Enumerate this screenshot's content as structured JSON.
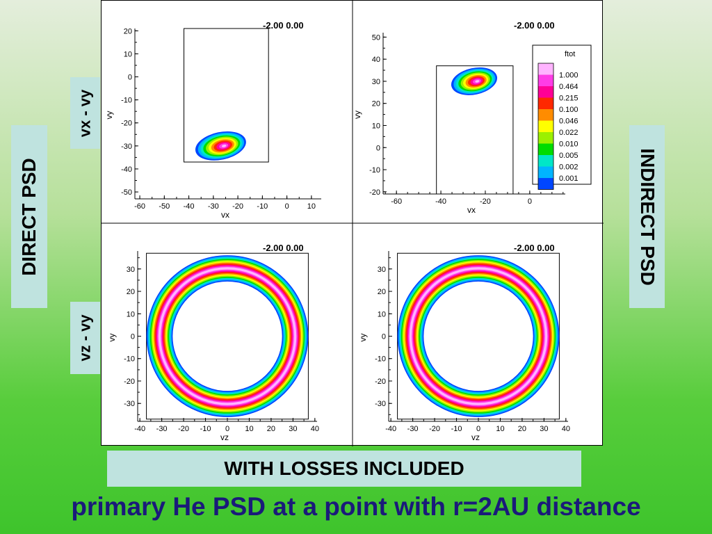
{
  "labels": {
    "direct": "DIRECT PSD",
    "indirect": "INDIRECT PSD",
    "row1": "vx - vy",
    "row2": "vz - vy",
    "banner": "WITH LOSSES INCLUDED",
    "caption": "primary He PSD at a point with r=2AU distance"
  },
  "colors": {
    "caption": "#1a1a7a",
    "label_bg": "#bfe3df",
    "contour_levels": [
      "#0046ff",
      "#00b4ff",
      "#00e6c8",
      "#00dc00",
      "#9cf000",
      "#ffff00",
      "#ff8c00",
      "#ff2800",
      "#ff0096",
      "#ff3ce6",
      "#ffb4ff"
    ]
  },
  "chart_data": [
    {
      "type": "heatmap",
      "name": "direct vx-vy",
      "header": "-2.00   0.00",
      "xlabel": "vx",
      "ylabel": "vy",
      "xticks": [
        -60,
        -50,
        -40,
        -30,
        -20,
        -10,
        0,
        10
      ],
      "yticks": [
        20,
        10,
        0,
        -10,
        -20,
        -30,
        -40,
        -50
      ],
      "xlim": [
        -62,
        14
      ],
      "ylim": [
        -53,
        21
      ],
      "domain_box": {
        "x": [
          -42,
          -7.5
        ],
        "y": [
          -37,
          21
        ]
      },
      "peak": {
        "vx": -27,
        "vy": -30
      }
    },
    {
      "type": "heatmap",
      "name": "indirect vx-vy",
      "header": "-2.00   0.00",
      "xlabel": "vx",
      "ylabel": "vy",
      "xticks": [
        -60,
        -40,
        -20,
        0
      ],
      "yticks": [
        50,
        40,
        30,
        20,
        10,
        0,
        -10,
        -20
      ],
      "xlim": [
        -66,
        16
      ],
      "ylim": [
        -21,
        52
      ],
      "domain_box": {
        "x": [
          -42,
          -7.5
        ],
        "y": [
          -21,
          37
        ]
      },
      "peak": {
        "vx": -25,
        "vy": 30
      }
    },
    {
      "type": "heatmap",
      "name": "direct vz-vy",
      "header": "-2.00   0.00",
      "xlabel": "vz",
      "ylabel": "vy",
      "xticks": [
        -40,
        -30,
        -20,
        -10,
        0,
        10,
        20,
        30,
        40
      ],
      "yticks": [
        30,
        20,
        10,
        0,
        -10,
        -20,
        -30
      ],
      "xlim": [
        -41,
        41
      ],
      "ylim": [
        -38,
        38
      ],
      "ring": {
        "center": [
          0,
          0
        ],
        "inner_radius": 25,
        "outer_radius": 37
      }
    },
    {
      "type": "heatmap",
      "name": "indirect vz-vy",
      "header": "-2.00   0.00",
      "xlabel": "vz",
      "ylabel": "vy",
      "xticks": [
        -40,
        -30,
        -20,
        -10,
        0,
        10,
        20,
        30,
        40
      ],
      "yticks": [
        30,
        20,
        10,
        0,
        -10,
        -20,
        -30
      ],
      "xlim": [
        -41,
        41
      ],
      "ylim": [
        -38,
        38
      ],
      "ring": {
        "center": [
          0,
          0
        ],
        "inner_radius": 25,
        "outer_radius": 37
      }
    }
  ],
  "legend": {
    "title": "ftot",
    "levels": [
      "1.000",
      "0.464",
      "0.215",
      "0.100",
      "0.046",
      "0.022",
      "0.010",
      "0.005",
      "0.002",
      "0.001"
    ]
  }
}
